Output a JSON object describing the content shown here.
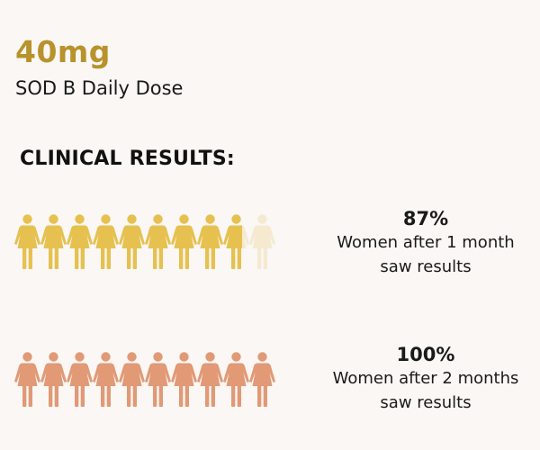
{
  "dose": {
    "value": "40mg",
    "label": "SOD B Daily Dose"
  },
  "heading": "CLINICAL RESULTS:",
  "colors": {
    "gold": "#e6c150",
    "gold_faded": "#f5ead0",
    "terracotta": "#e19976",
    "dose_text": "#b8922b",
    "background": "#faf7f4"
  },
  "results": [
    {
      "percent": "87%",
      "line1": "Women after 1 month",
      "line2": "saw results",
      "filled": 8.7,
      "total": 10,
      "color_key": "gold"
    },
    {
      "percent": "100%",
      "line1": "Women after 2 months",
      "line2": "saw results",
      "filled": 10,
      "total": 10,
      "color_key": "terracotta"
    }
  ]
}
